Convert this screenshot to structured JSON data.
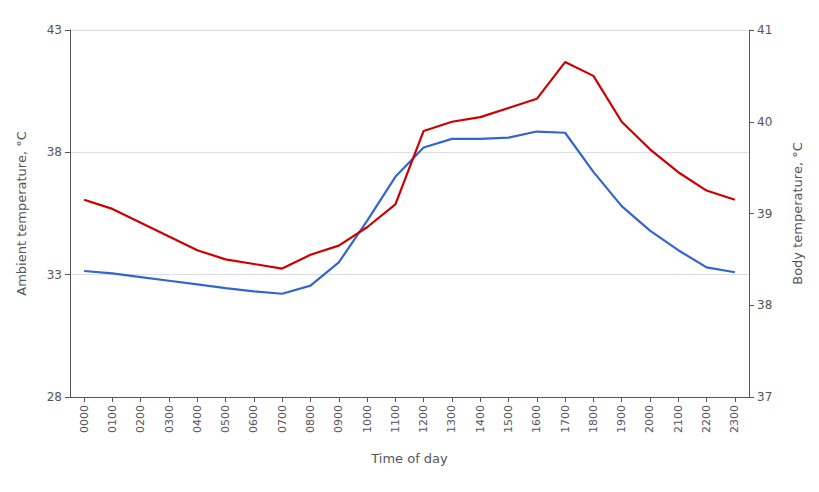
{
  "chart_data": {
    "type": "line",
    "xlabel": "Time of day",
    "ylabel": "Ambient temperature, °C",
    "y2label": "Body temperature, °C",
    "categories": [
      "0000",
      "0100",
      "0200",
      "0300",
      "0400",
      "0500",
      "0600",
      "0700",
      "0800",
      "0900",
      "1000",
      "1100",
      "1200",
      "1300",
      "1400",
      "1500",
      "1600",
      "1700",
      "1800",
      "1900",
      "2000",
      "2100",
      "2200",
      "2300"
    ],
    "series": [
      {
        "color": "#3366CC",
        "axis": "y",
        "values": [
          33.15,
          33.05,
          32.9,
          32.75,
          32.6,
          32.45,
          32.32,
          32.22,
          32.55,
          33.5,
          35.2,
          37.0,
          38.2,
          38.55,
          38.55,
          38.6,
          38.85,
          38.8,
          37.2,
          35.8,
          34.8,
          34.0,
          33.3,
          33.1
        ]
      },
      {
        "color": "#CC0000",
        "axis": "y2",
        "values": [
          39.15,
          39.05,
          38.9,
          38.75,
          38.6,
          38.5,
          38.45,
          38.4,
          38.55,
          38.65,
          38.85,
          39.1,
          39.9,
          40.0,
          40.05,
          40.15,
          40.25,
          40.65,
          40.5,
          40.0,
          39.7,
          39.45,
          39.25,
          39.15
        ]
      }
    ],
    "ylim": [
      28,
      43
    ],
    "yticks": [
      28,
      33,
      38,
      43
    ],
    "y2lim": [
      37,
      41
    ],
    "y2ticks": [
      37,
      38,
      39,
      40,
      41
    ],
    "grid": true
  }
}
